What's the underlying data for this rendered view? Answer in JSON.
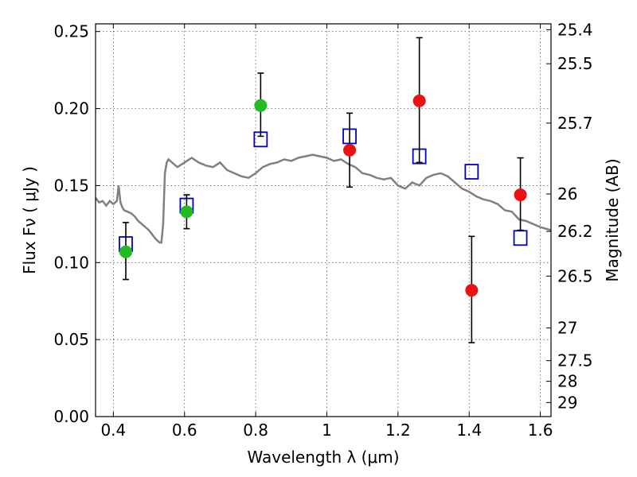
{
  "chart_data": {
    "type": "scatter",
    "xlabel": "Wavelength  λ (μm)",
    "ylabel": "Flux  Fν  ( μJy )",
    "ylabel_right": "Magnitude (AB)",
    "xlim": [
      0.35,
      1.63
    ],
    "ylim": [
      0.0,
      0.255
    ],
    "grid": true,
    "x_ticks": [
      "0.4",
      "0.6",
      "0.8",
      "1",
      "1.2",
      "1.4",
      "1.6"
    ],
    "y_ticks": [
      "0.00",
      "0.05",
      "0.10",
      "0.15",
      "0.20",
      "0.25"
    ],
    "right_ticks": [
      "25.4",
      "25.5",
      "25.7",
      "26",
      "26.2",
      "26.5",
      "27",
      "27.5",
      "28",
      "29"
    ],
    "colors": {
      "model": "#808080",
      "green": "#22bb22",
      "red": "#ee1111",
      "box": "#0000cc",
      "err": "#000000"
    },
    "series": [
      {
        "marker": "green-circle",
        "x": [
          0.435,
          0.606,
          0.814
        ],
        "y": [
          0.107,
          0.133,
          0.202
        ],
        "err_low": [
          0.089,
          0.122,
          0.182
        ],
        "err_high": [
          0.126,
          0.144,
          0.223
        ]
      },
      {
        "marker": "red-circle",
        "x": [
          1.064,
          1.26,
          1.407,
          1.544
        ],
        "y": [
          0.173,
          0.205,
          0.082,
          0.144
        ],
        "err_low": [
          0.149,
          0.165,
          0.048,
          0.121
        ],
        "err_high": [
          0.197,
          0.246,
          0.117,
          0.168
        ]
      },
      {
        "marker": "blue-open-square",
        "x": [
          0.435,
          0.606,
          0.814,
          1.064,
          1.26,
          1.407,
          1.544
        ],
        "y": [
          0.112,
          0.137,
          0.18,
          0.182,
          0.169,
          0.159,
          0.116
        ]
      },
      {
        "marker": "gray-line",
        "x": [
          0.35,
          0.36,
          0.37,
          0.38,
          0.39,
          0.4,
          0.41,
          0.415,
          0.42,
          0.425,
          0.43,
          0.44,
          0.45,
          0.46,
          0.47,
          0.48,
          0.49,
          0.5,
          0.51,
          0.52,
          0.53,
          0.535,
          0.54,
          0.545,
          0.55,
          0.555,
          0.56,
          0.58,
          0.6,
          0.62,
          0.64,
          0.66,
          0.68,
          0.7,
          0.72,
          0.74,
          0.76,
          0.78,
          0.8,
          0.82,
          0.84,
          0.86,
          0.88,
          0.9,
          0.92,
          0.94,
          0.96,
          0.98,
          1.0,
          1.02,
          1.04,
          1.06,
          1.08,
          1.1,
          1.12,
          1.14,
          1.16,
          1.18,
          1.2,
          1.22,
          1.24,
          1.26,
          1.28,
          1.3,
          1.32,
          1.34,
          1.36,
          1.38,
          1.4,
          1.42,
          1.44,
          1.46,
          1.48,
          1.5,
          1.52,
          1.54,
          1.56,
          1.58,
          1.6,
          1.63
        ],
        "y": [
          0.142,
          0.139,
          0.14,
          0.137,
          0.14,
          0.138,
          0.14,
          0.15,
          0.139,
          0.136,
          0.134,
          0.133,
          0.132,
          0.13,
          0.127,
          0.125,
          0.123,
          0.121,
          0.118,
          0.115,
          0.113,
          0.113,
          0.125,
          0.158,
          0.165,
          0.167,
          0.166,
          0.162,
          0.165,
          0.168,
          0.165,
          0.163,
          0.162,
          0.165,
          0.16,
          0.158,
          0.156,
          0.155,
          0.158,
          0.162,
          0.164,
          0.165,
          0.167,
          0.166,
          0.168,
          0.169,
          0.17,
          0.169,
          0.168,
          0.166,
          0.167,
          0.164,
          0.162,
          0.158,
          0.157,
          0.155,
          0.154,
          0.155,
          0.15,
          0.148,
          0.152,
          0.15,
          0.155,
          0.157,
          0.158,
          0.156,
          0.152,
          0.148,
          0.146,
          0.143,
          0.141,
          0.14,
          0.138,
          0.134,
          0.133,
          0.128,
          0.127,
          0.125,
          0.123,
          0.121
        ]
      }
    ]
  }
}
